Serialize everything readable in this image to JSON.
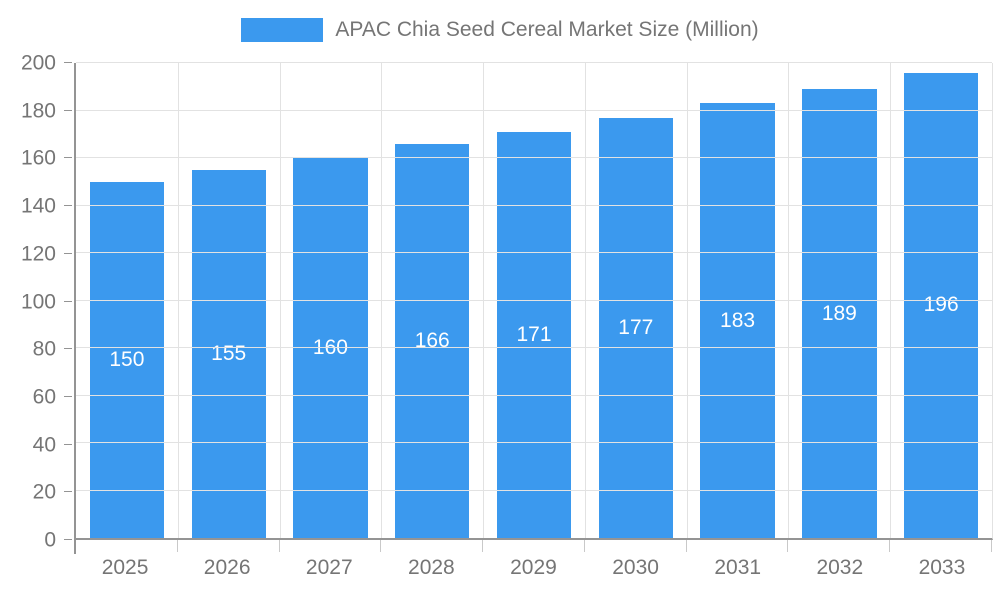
{
  "legend": {
    "label": "APAC Chia Seed Cereal Market Size (Million)"
  },
  "colors": {
    "bar": "#3B99EE",
    "grid": "#E2E2E2",
    "axis": "#949494",
    "boundary_tick": "#C9C9C9",
    "text": "#757575",
    "bar_label": "#FFFFFF",
    "background": "#FFFFFF"
  },
  "chart_data": {
    "type": "bar",
    "title": "APAC Chia Seed Cereal Market Size (Million)",
    "categories": [
      "2025",
      "2026",
      "2027",
      "2028",
      "2029",
      "2030",
      "2031",
      "2032",
      "2033"
    ],
    "values": [
      150,
      155,
      160,
      166,
      171,
      177,
      183,
      189,
      196
    ],
    "xlabel": "",
    "ylabel": "",
    "ylim": [
      0,
      200
    ],
    "ytick_step": 20,
    "grid": true,
    "vertical_category_gridlines": true,
    "legend_position": "top-center",
    "bar_value_labels": "inside-center"
  }
}
